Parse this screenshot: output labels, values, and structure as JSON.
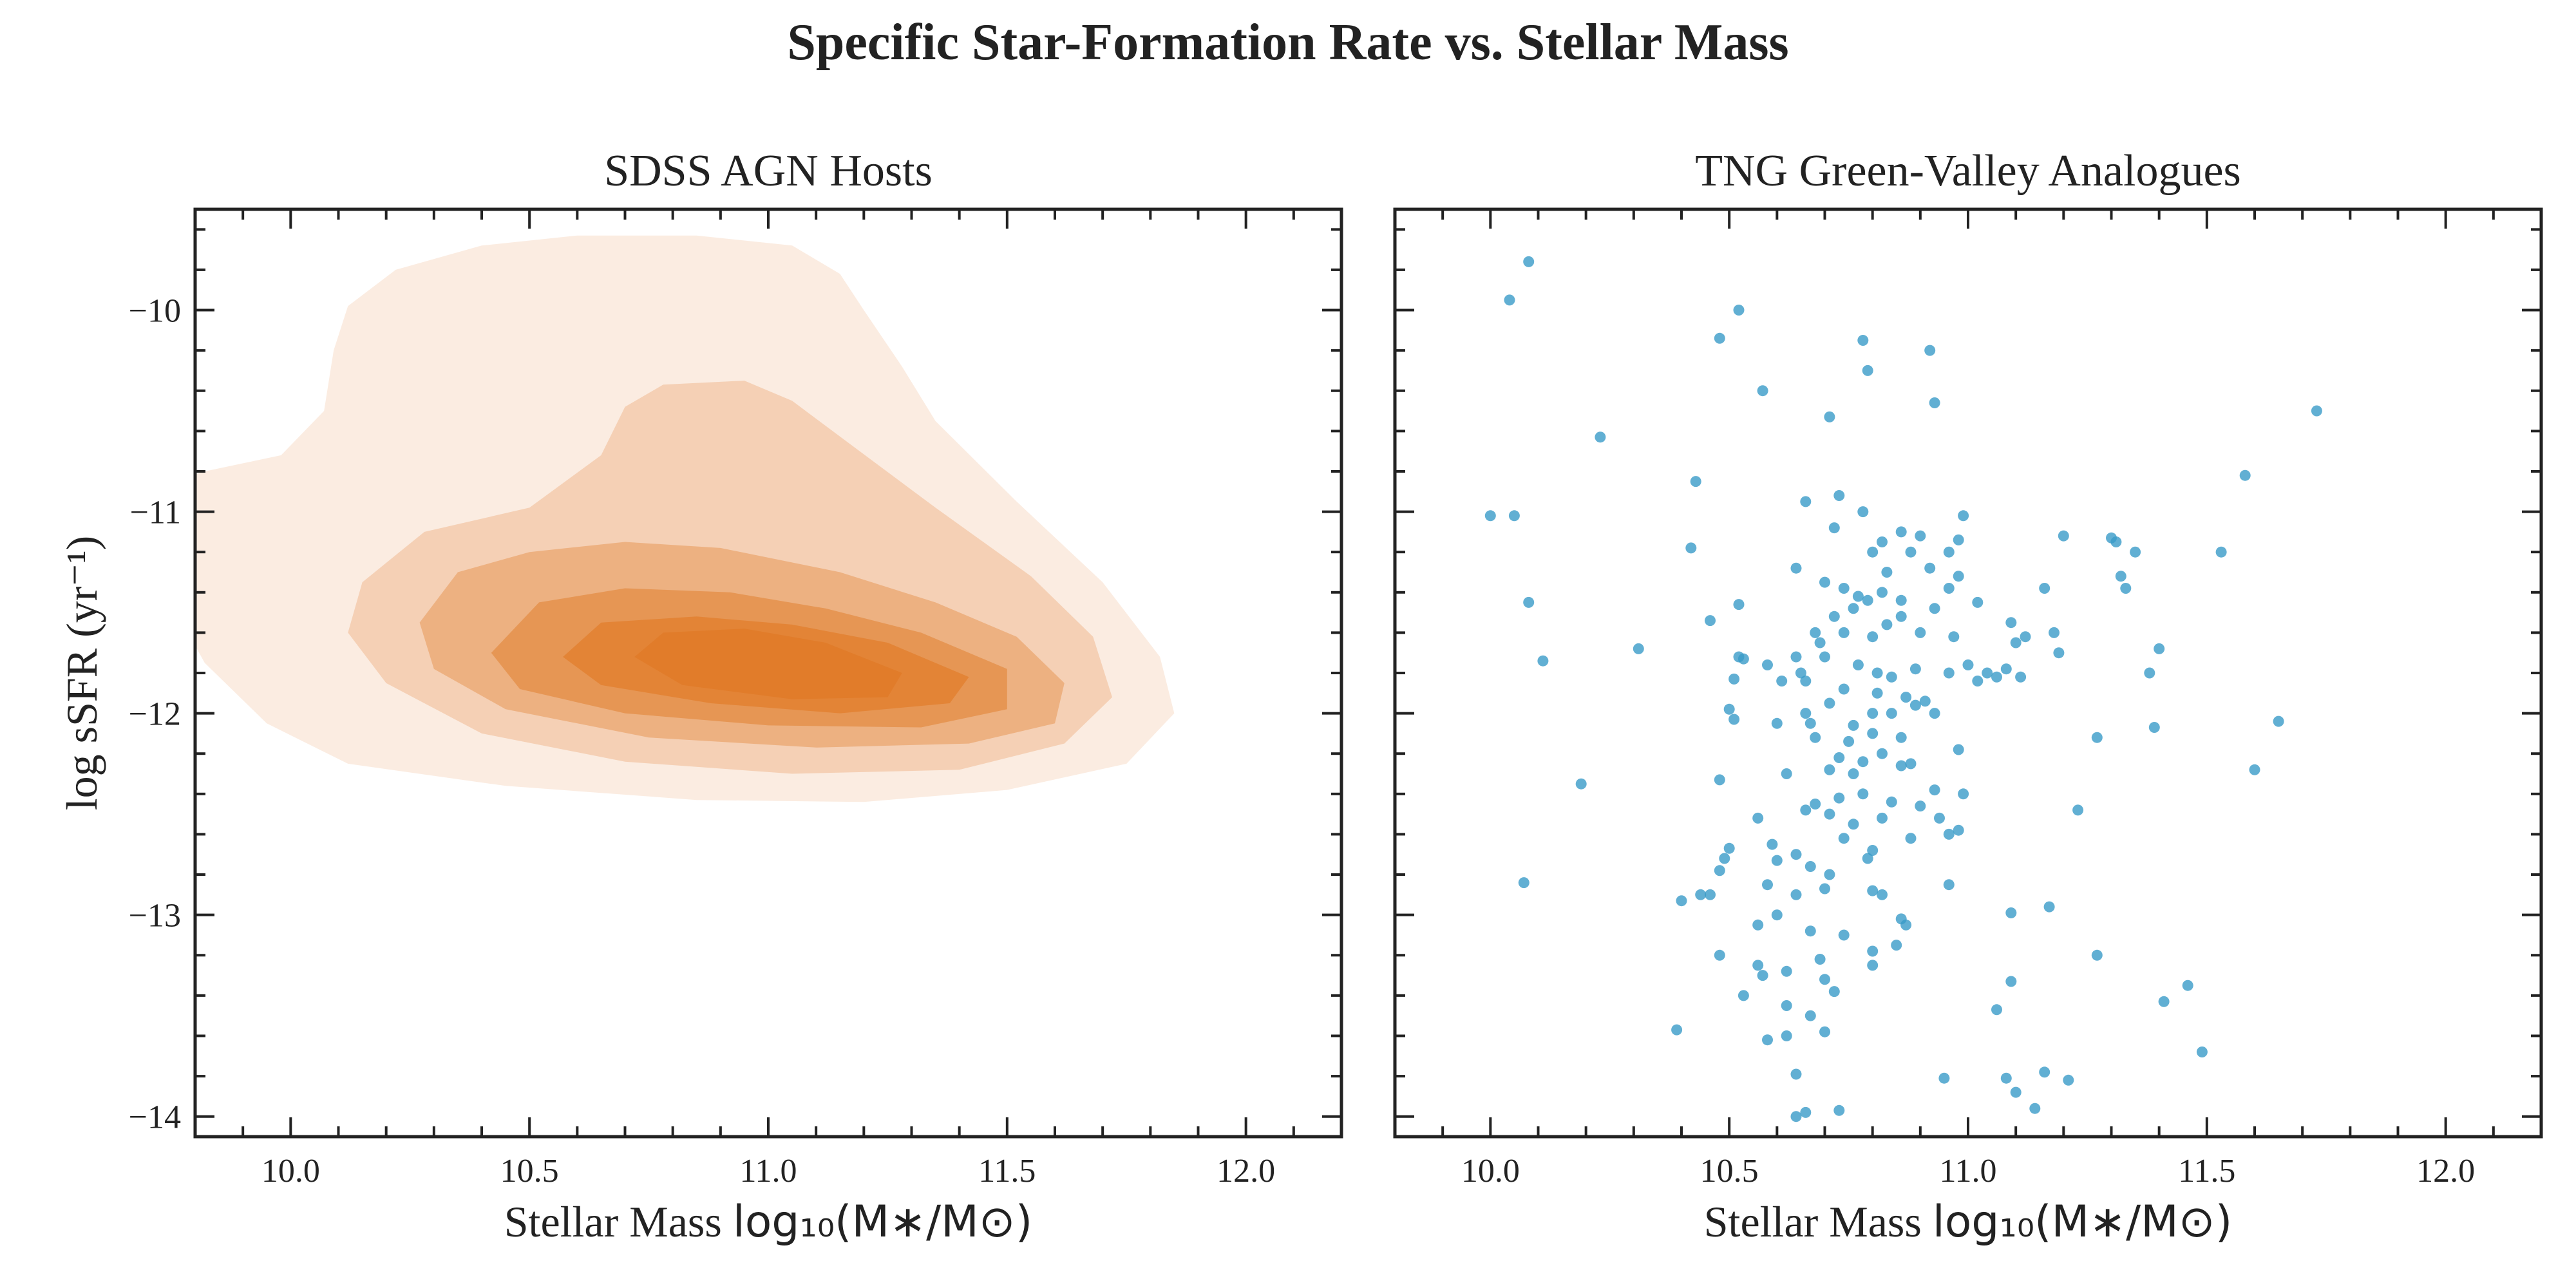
{
  "figure": {
    "suptitle": "Specific Star-Formation Rate vs. Stellar Mass"
  },
  "chart_data": [
    {
      "type": "kde-contour",
      "title": "SDSS AGN Hosts",
      "xlabel_prefix": "Stellar Mass ",
      "xlabel_math": "log₁₀(M∗/M⊙)",
      "ylabel": "log sSFR (yr⁻¹)",
      "xlim": [
        9.8,
        12.2
      ],
      "ylim": [
        -14.1,
        -9.5
      ],
      "xticks": [
        10.0,
        10.5,
        11.0,
        11.5,
        12.0
      ],
      "xtick_labels": [
        "10.0",
        "10.5",
        "11.0",
        "11.5",
        "12.0"
      ],
      "yticks": [
        -14,
        -13,
        -12,
        -11,
        -10
      ],
      "ytick_labels": [
        "−14",
        "−13",
        "−12",
        "−11",
        "−10"
      ],
      "color": "#e07b28",
      "levels": [
        {
          "level": 1,
          "opacity": 0.14,
          "polygon": [
            [
              9.75,
              -10.85
            ],
            [
              9.82,
              -10.8
            ],
            [
              9.98,
              -10.72
            ],
            [
              10.07,
              -10.5
            ],
            [
              10.09,
              -10.2
            ],
            [
              10.12,
              -9.98
            ],
            [
              10.22,
              -9.8
            ],
            [
              10.4,
              -9.68
            ],
            [
              10.6,
              -9.63
            ],
            [
              10.85,
              -9.63
            ],
            [
              11.05,
              -9.68
            ],
            [
              11.15,
              -9.82
            ],
            [
              11.2,
              -10.0
            ],
            [
              11.28,
              -10.28
            ],
            [
              11.35,
              -10.55
            ],
            [
              11.52,
              -10.95
            ],
            [
              11.7,
              -11.35
            ],
            [
              11.82,
              -11.72
            ],
            [
              11.85,
              -12.0
            ],
            [
              11.75,
              -12.25
            ],
            [
              11.5,
              -12.38
            ],
            [
              11.2,
              -12.44
            ],
            [
              10.85,
              -12.43
            ],
            [
              10.45,
              -12.36
            ],
            [
              10.12,
              -12.25
            ],
            [
              9.95,
              -12.05
            ],
            [
              9.82,
              -11.75
            ],
            [
              9.75,
              -11.45
            ]
          ]
        },
        {
          "level": 2,
          "opacity": 0.24,
          "polygon": [
            [
              10.15,
              -11.35
            ],
            [
              10.28,
              -11.1
            ],
            [
              10.5,
              -10.98
            ],
            [
              10.65,
              -10.72
            ],
            [
              10.7,
              -10.48
            ],
            [
              10.78,
              -10.37
            ],
            [
              10.95,
              -10.35
            ],
            [
              11.05,
              -10.45
            ],
            [
              11.18,
              -10.68
            ],
            [
              11.35,
              -10.98
            ],
            [
              11.55,
              -11.32
            ],
            [
              11.68,
              -11.62
            ],
            [
              11.72,
              -11.92
            ],
            [
              11.62,
              -12.15
            ],
            [
              11.4,
              -12.28
            ],
            [
              11.05,
              -12.3
            ],
            [
              10.7,
              -12.24
            ],
            [
              10.4,
              -12.1
            ],
            [
              10.2,
              -11.85
            ],
            [
              10.12,
              -11.6
            ]
          ]
        },
        {
          "level": 3,
          "opacity": 0.36,
          "polygon": [
            [
              10.27,
              -11.55
            ],
            [
              10.35,
              -11.3
            ],
            [
              10.5,
              -11.2
            ],
            [
              10.7,
              -11.15
            ],
            [
              10.9,
              -11.18
            ],
            [
              11.15,
              -11.3
            ],
            [
              11.35,
              -11.45
            ],
            [
              11.52,
              -11.62
            ],
            [
              11.62,
              -11.85
            ],
            [
              11.6,
              -12.05
            ],
            [
              11.42,
              -12.15
            ],
            [
              11.1,
              -12.17
            ],
            [
              10.75,
              -12.12
            ],
            [
              10.45,
              -11.98
            ],
            [
              10.3,
              -11.78
            ]
          ]
        },
        {
          "level": 4,
          "opacity": 0.5,
          "polygon": [
            [
              10.42,
              -11.7
            ],
            [
              10.52,
              -11.45
            ],
            [
              10.7,
              -11.38
            ],
            [
              10.92,
              -11.4
            ],
            [
              11.12,
              -11.48
            ],
            [
              11.32,
              -11.6
            ],
            [
              11.5,
              -11.78
            ],
            [
              11.5,
              -11.98
            ],
            [
              11.32,
              -12.07
            ],
            [
              11.0,
              -12.06
            ],
            [
              10.7,
              -12.0
            ],
            [
              10.48,
              -11.88
            ]
          ]
        },
        {
          "level": 5,
          "opacity": 0.66,
          "polygon": [
            [
              10.57,
              -11.72
            ],
            [
              10.65,
              -11.55
            ],
            [
              10.85,
              -11.52
            ],
            [
              11.05,
              -11.56
            ],
            [
              11.25,
              -11.65
            ],
            [
              11.42,
              -11.82
            ],
            [
              11.38,
              -11.95
            ],
            [
              11.15,
              -12.0
            ],
            [
              10.88,
              -11.95
            ],
            [
              10.65,
              -11.86
            ]
          ]
        },
        {
          "level": 6,
          "opacity": 0.84,
          "polygon": [
            [
              10.72,
              -11.72
            ],
            [
              10.78,
              -11.6
            ],
            [
              10.95,
              -11.58
            ],
            [
              11.12,
              -11.65
            ],
            [
              11.28,
              -11.8
            ],
            [
              11.25,
              -11.92
            ],
            [
              11.05,
              -11.93
            ],
            [
              10.82,
              -11.86
            ]
          ]
        }
      ]
    },
    {
      "type": "scatter",
      "title": "TNG Green-Valley Analogues",
      "xlabel_prefix": "Stellar Mass ",
      "xlabel_math": "log₁₀(M∗/M⊙)",
      "xlim": [
        9.8,
        12.2
      ],
      "ylim": [
        -14.1,
        -9.5
      ],
      "xticks": [
        10.0,
        10.5,
        11.0,
        11.5,
        12.0
      ],
      "xtick_labels": [
        "10.0",
        "10.5",
        "11.0",
        "11.5",
        "12.0"
      ],
      "yticks": [
        -14,
        -13,
        -12,
        -11,
        -10
      ],
      "color": "#3a9bc8",
      "points": [
        [
          10.08,
          -9.76
        ],
        [
          10.04,
          -9.95
        ],
        [
          10.52,
          -10.0
        ],
        [
          10.48,
          -10.14
        ],
        [
          10.78,
          -10.15
        ],
        [
          10.79,
          -10.3
        ],
        [
          10.92,
          -10.2
        ],
        [
          10.57,
          -10.4
        ],
        [
          10.71,
          -10.53
        ],
        [
          10.93,
          -10.46
        ],
        [
          11.73,
          -10.5
        ],
        [
          10.23,
          -10.63
        ],
        [
          10.43,
          -10.85
        ],
        [
          11.58,
          -10.82
        ],
        [
          10.0,
          -11.02
        ],
        [
          10.05,
          -11.02
        ],
        [
          10.42,
          -11.18
        ],
        [
          10.66,
          -10.95
        ],
        [
          10.73,
          -10.92
        ],
        [
          10.72,
          -11.08
        ],
        [
          10.78,
          -11.0
        ],
        [
          10.99,
          -11.02
        ],
        [
          11.2,
          -11.12
        ],
        [
          11.3,
          -11.13
        ],
        [
          11.53,
          -11.2
        ],
        [
          10.82,
          -11.15
        ],
        [
          10.86,
          -11.1
        ],
        [
          10.9,
          -11.12
        ],
        [
          10.98,
          -11.14
        ],
        [
          10.8,
          -11.2
        ],
        [
          10.88,
          -11.2
        ],
        [
          10.96,
          -11.2
        ],
        [
          10.64,
          -11.28
        ],
        [
          10.7,
          -11.35
        ],
        [
          10.74,
          -11.38
        ],
        [
          10.83,
          -11.3
        ],
        [
          10.92,
          -11.28
        ],
        [
          10.98,
          -11.32
        ],
        [
          11.31,
          -11.15
        ],
        [
          11.35,
          -11.2
        ],
        [
          11.32,
          -11.32
        ],
        [
          11.16,
          -11.38
        ],
        [
          10.08,
          -11.45
        ],
        [
          10.52,
          -11.46
        ],
        [
          10.46,
          -11.54
        ],
        [
          10.77,
          -11.42
        ],
        [
          10.82,
          -11.4
        ],
        [
          10.96,
          -11.38
        ],
        [
          11.33,
          -11.38
        ],
        [
          10.76,
          -11.48
        ],
        [
          10.79,
          -11.44
        ],
        [
          10.86,
          -11.44
        ],
        [
          10.93,
          -11.48
        ],
        [
          11.02,
          -11.45
        ],
        [
          10.68,
          -11.6
        ],
        [
          10.72,
          -11.52
        ],
        [
          10.86,
          -11.52
        ],
        [
          11.09,
          -11.55
        ],
        [
          10.11,
          -11.74
        ],
        [
          10.31,
          -11.68
        ],
        [
          10.52,
          -11.72
        ],
        [
          10.53,
          -11.73
        ],
        [
          10.64,
          -11.72
        ],
        [
          10.69,
          -11.65
        ],
        [
          10.74,
          -11.6
        ],
        [
          10.8,
          -11.62
        ],
        [
          10.83,
          -11.56
        ],
        [
          10.9,
          -11.6
        ],
        [
          10.97,
          -11.62
        ],
        [
          11.1,
          -11.65
        ],
        [
          11.12,
          -11.62
        ],
        [
          11.18,
          -11.6
        ],
        [
          11.19,
          -11.7
        ],
        [
          11.4,
          -11.68
        ],
        [
          10.58,
          -11.76
        ],
        [
          10.65,
          -11.8
        ],
        [
          10.7,
          -11.72
        ],
        [
          10.77,
          -11.76
        ],
        [
          10.81,
          -11.8
        ],
        [
          10.84,
          -11.82
        ],
        [
          10.89,
          -11.78
        ],
        [
          10.96,
          -11.8
        ],
        [
          11.0,
          -11.76
        ],
        [
          11.04,
          -11.8
        ],
        [
          11.06,
          -11.82
        ],
        [
          11.38,
          -11.8
        ],
        [
          10.51,
          -11.83
        ],
        [
          10.61,
          -11.84
        ],
        [
          10.66,
          -11.84
        ],
        [
          10.74,
          -11.88
        ],
        [
          10.81,
          -11.9
        ],
        [
          10.87,
          -11.92
        ],
        [
          10.91,
          -11.94
        ],
        [
          11.02,
          -11.84
        ],
        [
          11.08,
          -11.78
        ],
        [
          11.11,
          -11.82
        ],
        [
          10.5,
          -11.98
        ],
        [
          10.6,
          -12.05
        ],
        [
          10.66,
          -12.0
        ],
        [
          10.71,
          -11.95
        ],
        [
          10.8,
          -12.0
        ],
        [
          10.89,
          -11.96
        ],
        [
          10.93,
          -12.0
        ],
        [
          10.51,
          -12.03
        ],
        [
          10.67,
          -12.05
        ],
        [
          10.76,
          -12.06
        ],
        [
          10.84,
          -12.0
        ],
        [
          11.27,
          -12.12
        ],
        [
          11.39,
          -12.07
        ],
        [
          11.65,
          -12.04
        ],
        [
          10.68,
          -12.12
        ],
        [
          10.75,
          -12.14
        ],
        [
          10.8,
          -12.1
        ],
        [
          10.86,
          -12.12
        ],
        [
          10.98,
          -12.18
        ],
        [
          10.73,
          -12.22
        ],
        [
          10.78,
          -12.24
        ],
        [
          10.82,
          -12.2
        ],
        [
          10.88,
          -12.25
        ],
        [
          11.6,
          -12.28
        ],
        [
          10.19,
          -12.35
        ],
        [
          10.48,
          -12.33
        ],
        [
          10.62,
          -12.3
        ],
        [
          10.71,
          -12.28
        ],
        [
          10.76,
          -12.3
        ],
        [
          10.86,
          -12.26
        ],
        [
          10.93,
          -12.38
        ],
        [
          10.68,
          -12.45
        ],
        [
          10.73,
          -12.42
        ],
        [
          10.78,
          -12.4
        ],
        [
          10.84,
          -12.44
        ],
        [
          10.9,
          -12.46
        ],
        [
          10.99,
          -12.4
        ],
        [
          11.23,
          -12.48
        ],
        [
          10.56,
          -12.52
        ],
        [
          10.66,
          -12.48
        ],
        [
          10.71,
          -12.5
        ],
        [
          10.76,
          -12.55
        ],
        [
          10.82,
          -12.52
        ],
        [
          10.94,
          -12.52
        ],
        [
          10.98,
          -12.58
        ],
        [
          10.5,
          -12.67
        ],
        [
          10.59,
          -12.65
        ],
        [
          10.64,
          -12.7
        ],
        [
          10.74,
          -12.62
        ],
        [
          10.8,
          -12.68
        ],
        [
          10.88,
          -12.62
        ],
        [
          10.96,
          -12.6
        ],
        [
          10.07,
          -12.84
        ],
        [
          10.49,
          -12.72
        ],
        [
          10.6,
          -12.73
        ],
        [
          10.67,
          -12.76
        ],
        [
          10.71,
          -12.8
        ],
        [
          10.79,
          -12.72
        ],
        [
          10.96,
          -12.85
        ],
        [
          10.46,
          -12.9
        ],
        [
          10.48,
          -12.78
        ],
        [
          10.58,
          -12.85
        ],
        [
          10.64,
          -12.9
        ],
        [
          10.7,
          -12.87
        ],
        [
          10.8,
          -12.88
        ],
        [
          10.82,
          -12.9
        ],
        [
          10.86,
          -13.02
        ],
        [
          10.4,
          -12.93
        ],
        [
          10.44,
          -12.9
        ],
        [
          11.09,
          -12.99
        ],
        [
          11.17,
          -12.96
        ],
        [
          10.56,
          -13.05
        ],
        [
          10.6,
          -13.0
        ],
        [
          10.67,
          -13.08
        ],
        [
          10.74,
          -13.1
        ],
        [
          10.48,
          -13.2
        ],
        [
          10.56,
          -13.25
        ],
        [
          10.69,
          -13.22
        ],
        [
          10.8,
          -13.18
        ],
        [
          10.85,
          -13.15
        ],
        [
          10.87,
          -13.05
        ],
        [
          11.27,
          -13.2
        ],
        [
          10.53,
          -13.4
        ],
        [
          10.57,
          -13.3
        ],
        [
          10.62,
          -13.28
        ],
        [
          10.7,
          -13.32
        ],
        [
          10.8,
          -13.25
        ],
        [
          11.09,
          -13.33
        ],
        [
          11.46,
          -13.35
        ],
        [
          11.41,
          -13.43
        ],
        [
          10.39,
          -13.57
        ],
        [
          10.62,
          -13.45
        ],
        [
          10.67,
          -13.5
        ],
        [
          10.72,
          -13.38
        ],
        [
          11.06,
          -13.47
        ],
        [
          11.49,
          -13.68
        ],
        [
          10.58,
          -13.62
        ],
        [
          10.62,
          -13.6
        ],
        [
          10.7,
          -13.58
        ],
        [
          10.64,
          -13.79
        ],
        [
          10.95,
          -13.81
        ],
        [
          11.08,
          -13.81
        ],
        [
          11.1,
          -13.88
        ],
        [
          11.16,
          -13.78
        ],
        [
          11.21,
          -13.82
        ],
        [
          11.14,
          -13.96
        ],
        [
          10.64,
          -14.0
        ],
        [
          10.66,
          -13.98
        ],
        [
          10.73,
          -13.97
        ]
      ]
    }
  ]
}
